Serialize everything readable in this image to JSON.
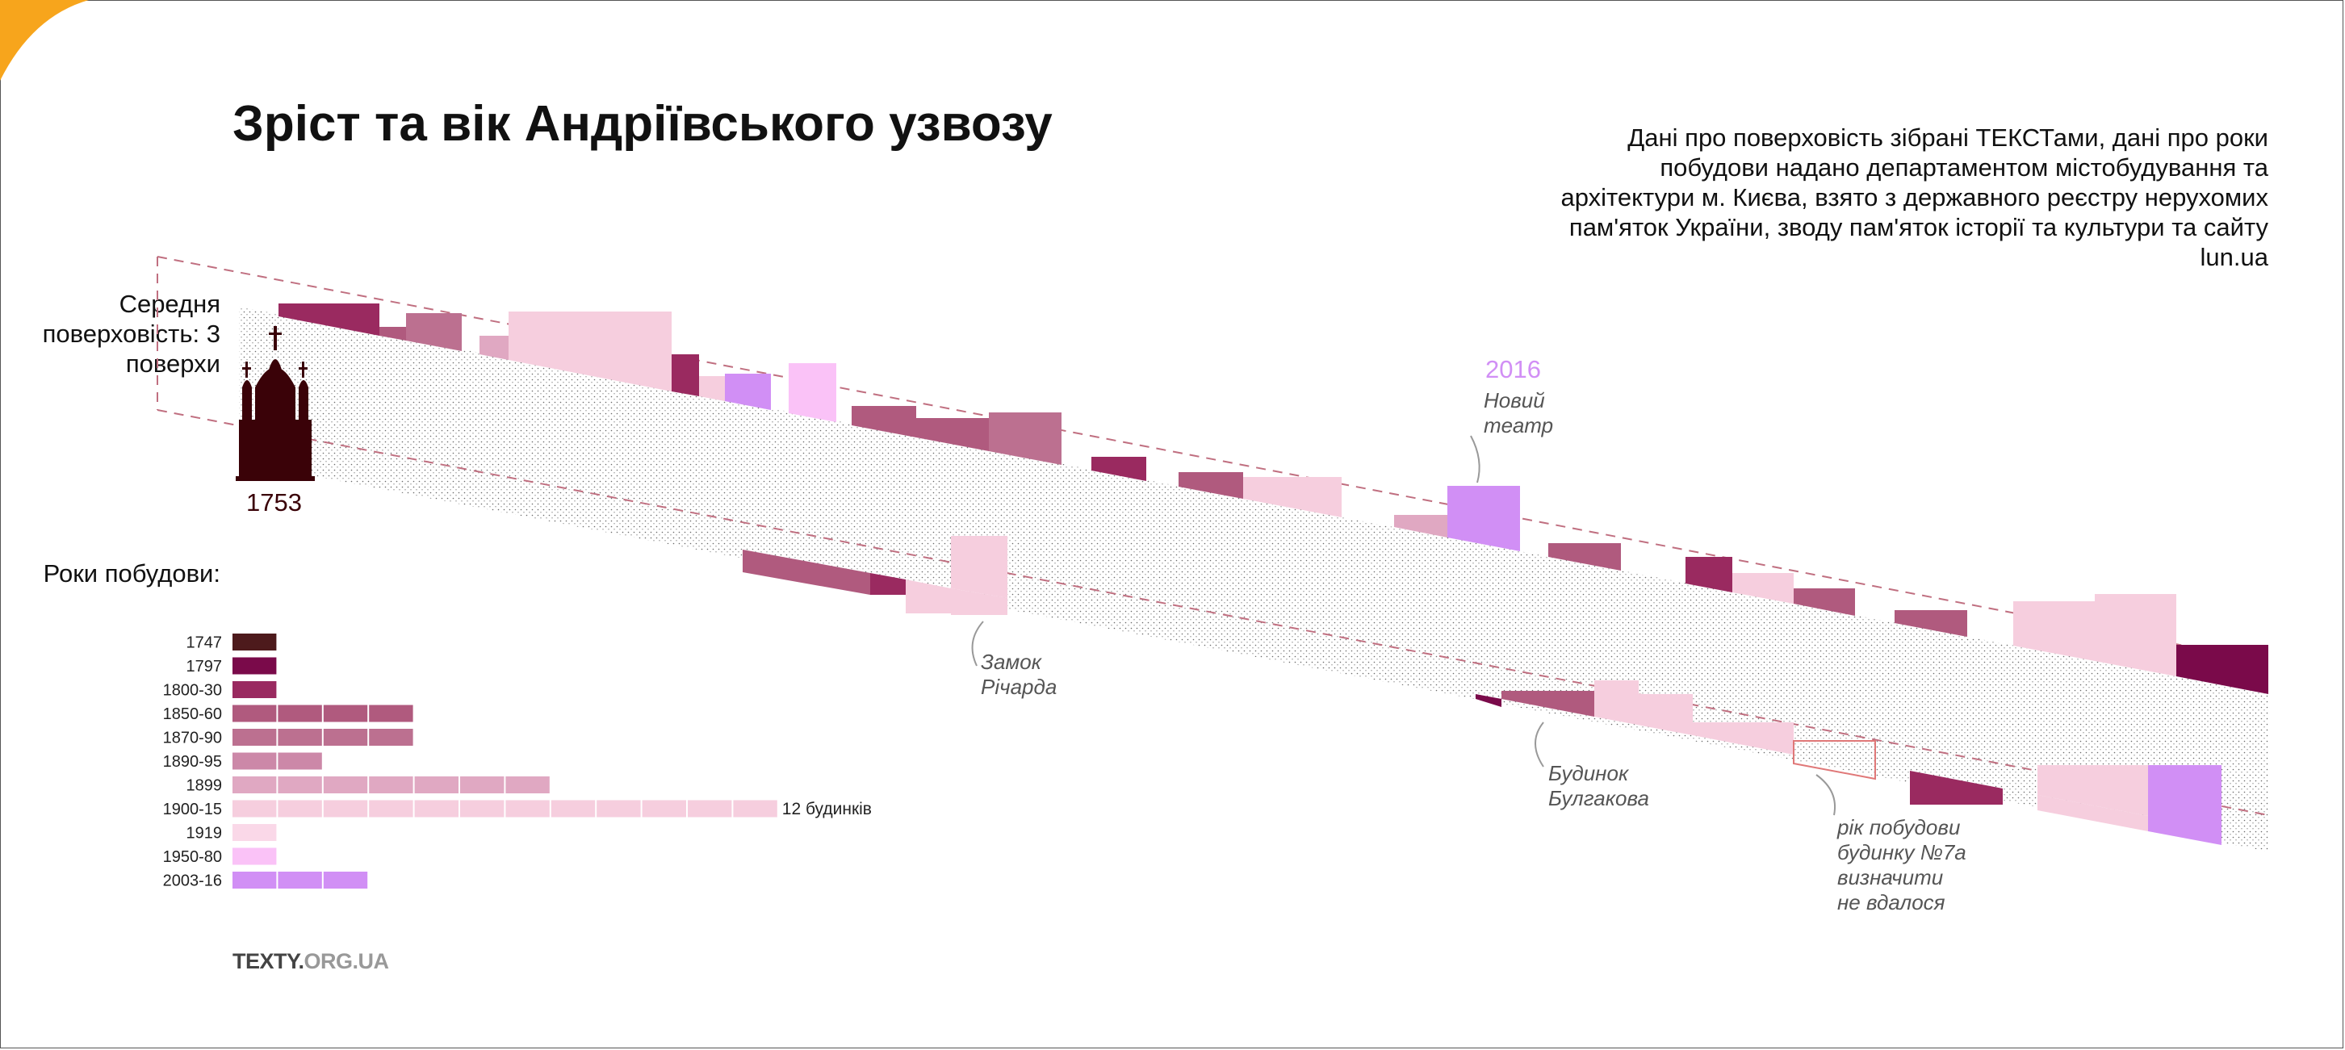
{
  "title": "Зріст та вік Андріївського узвозу",
  "source_note": "Дані про поверховість зібрані ТЕКСТами, дані про роки побудови надано департаментом містобудування та архітектури м. Києва, взято з державного реєстру нерухомих пам'яток України, зводу пам'яток історії та культури та сайту lun.ua",
  "avg_floors_label": "Середня поверховість: 3 поверхи",
  "church_year": "1753",
  "years_label": "Роки побудови:",
  "footer": {
    "main": "TEXTY.",
    "dim": "ORG.UA"
  },
  "colors": {
    "1747": "#4d1a1c",
    "1797": "#7a0a4a",
    "1800-30": "#9a2a60",
    "1850-60": "#b05a7e",
    "1870-90": "#bc7090",
    "1890-95": "#cc88a8",
    "1899": "#e0a8c2",
    "1900-15": "#f6cede",
    "1919": "#fad8e8",
    "1950-80": "#fac2f7",
    "2003-16": "#d18ff5",
    "accent": "#f7a51c",
    "church": "#3a0208",
    "dashed": "#c06f80",
    "note_box": "#e07878"
  },
  "chart_data": {
    "type": "bar",
    "title": "Роки побудови:",
    "categories": [
      "1747",
      "1797",
      "1800-30",
      "1850-60",
      "1870-90",
      "1890-95",
      "1899",
      "1900-15",
      "1919",
      "1950-80",
      "2003-16"
    ],
    "values": [
      1,
      1,
      1,
      4,
      4,
      2,
      7,
      12,
      1,
      1,
      3
    ],
    "value_label_text": "12 будинків",
    "value_label_category": "1900-15"
  },
  "annotations": {
    "new_theatre_year": "2016",
    "new_theatre": [
      "Новий",
      "театр"
    ],
    "richard_castle": [
      "Замок",
      "Річарда"
    ],
    "bulgakov_house": [
      "Будинок",
      "Булгакова"
    ],
    "house_7a": [
      "рік побудови",
      "будинку №7а",
      "визначити",
      "не вдалося"
    ]
  }
}
